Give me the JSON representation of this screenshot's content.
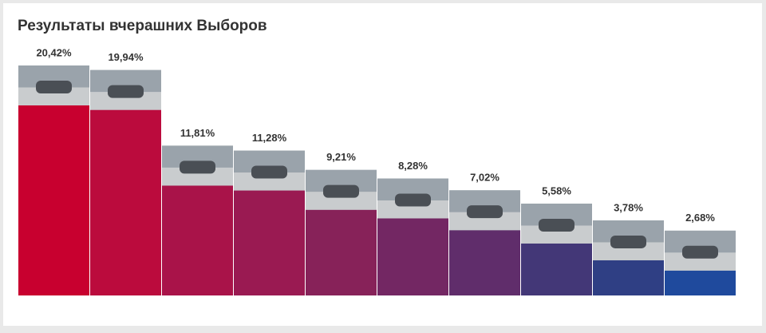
{
  "chart_data": {
    "type": "bar",
    "title": "Результаты вчерашних Выборов",
    "values": [
      20.42,
      19.94,
      11.81,
      11.28,
      9.21,
      8.28,
      7.02,
      5.58,
      3.78,
      2.68
    ],
    "value_labels": [
      "20,42%",
      "19,94%",
      "11,81%",
      "11,28%",
      "9,21%",
      "8,28%",
      "7,02%",
      "5,58%",
      "3,78%",
      "2,68%"
    ],
    "colors": [
      "#c8002f",
      "#bb0b3d",
      "#a91349",
      "#9a1a52",
      "#872259",
      "#732763",
      "#602d6b",
      "#433777",
      "#2f3f84",
      "#1f4a9d"
    ]
  }
}
